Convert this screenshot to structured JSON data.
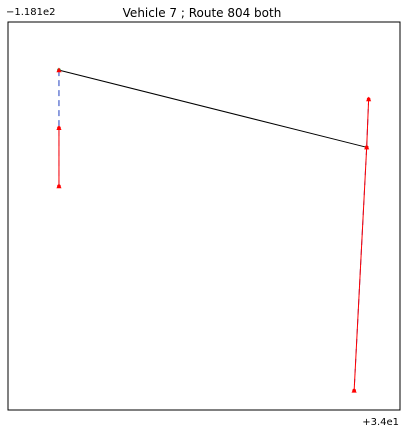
{
  "chart_data": {
    "type": "line",
    "title": "Vehicle 7 ; Route 804 both",
    "xlabel": "",
    "ylabel": "",
    "x_offset_label": "+3.4e1",
    "y_offset_label": "−1.181e2",
    "xlim": [
      0,
      100
    ],
    "ylim": [
      0,
      100
    ],
    "grid": false,
    "legend": "none",
    "series": [
      {
        "values_x": [
          13.0,
          91.5
        ],
        "values_y": [
          87.6,
          67.7
        ],
        "style": "solid",
        "color": "#000000",
        "marker": "circle",
        "marker_color": "#2e7d32"
      },
      {
        "values_x": [
          13.0,
          13.0,
          13.0
        ],
        "values_y": [
          87.6,
          72.7,
          57.7
        ],
        "style": "dashed",
        "color": "#1f3fbf",
        "marker": "triangle",
        "marker_color": "#ff0000"
      },
      {
        "values_x": [
          13.0,
          13.0
        ],
        "values_y": [
          72.7,
          57.7
        ],
        "style": "solid",
        "color": "#ff0000",
        "marker": "circle",
        "marker_color": "#ff0000"
      },
      {
        "values_x": [
          92.0,
          91.5,
          88.3
        ],
        "values_y": [
          80.1,
          67.7,
          5.0
        ],
        "style": "dashed",
        "color": "#1f3fbf",
        "marker": "triangle",
        "marker_color": "#ff0000"
      },
      {
        "values_x": [
          92.0,
          91.5,
          88.3
        ],
        "values_y": [
          80.1,
          67.7,
          5.0
        ],
        "style": "solid",
        "color": "#ff0000",
        "marker": "circle",
        "marker_color": "#ff0000"
      }
    ]
  }
}
